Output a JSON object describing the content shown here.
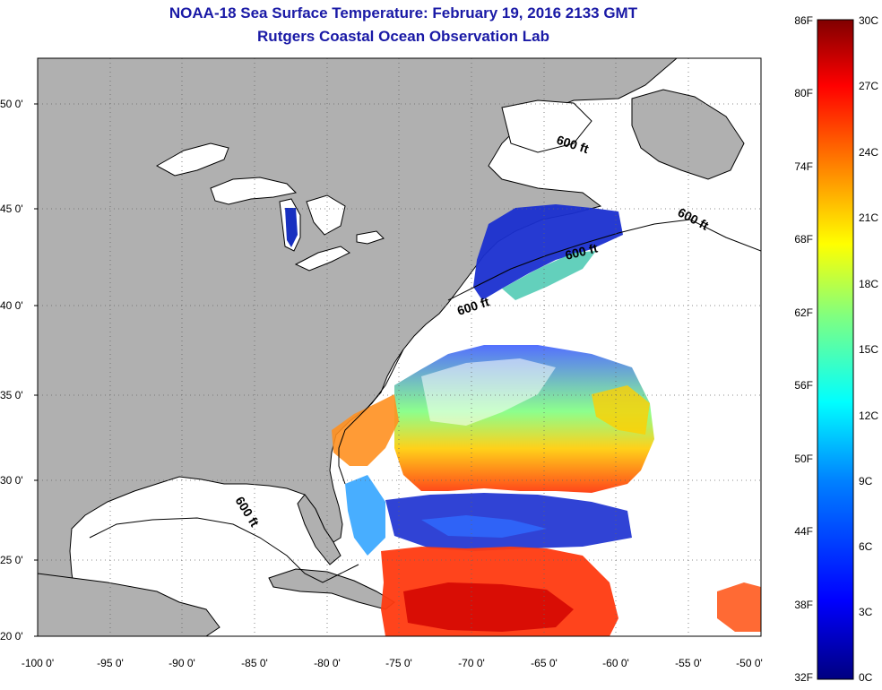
{
  "header": {
    "title": "NOAA-18 Sea Surface Temperature:  February 19, 2016 2133 GMT",
    "subtitle": "Rutgers Coastal Ocean Observation Lab"
  },
  "map": {
    "lat_ticks": [
      "50 0'",
      "45 0'",
      "40 0'",
      "35 0'",
      "30 0'",
      "25 0'",
      "20 0'"
    ],
    "lon_ticks": [
      "-100 0'",
      "-95 0'",
      "-90 0'",
      "-85 0'",
      "-80 0'",
      "-75 0'",
      "-70 0'",
      "-65 0'",
      "-60 0'",
      "-55 0'",
      "-50 0'"
    ],
    "contour_label": "600 ft",
    "colors": {
      "land": "#b0b0b0",
      "water_no_data": "#ffffff",
      "coast": "#000000",
      "grid": "#666666"
    }
  },
  "colorbar": {
    "f_labels": [
      "86F",
      "80F",
      "74F",
      "68F",
      "62F",
      "56F",
      "50F",
      "44F",
      "38F",
      "32F"
    ],
    "c_labels": [
      "30C",
      "27C",
      "24C",
      "21C",
      "18C",
      "15C",
      "12C",
      "9C",
      "6C",
      "3C",
      "0C"
    ],
    "range_c": [
      0,
      30
    ],
    "colors": [
      "#000080",
      "#0000ff",
      "#0080ff",
      "#00ffff",
      "#80ff80",
      "#ffff00",
      "#ff8000",
      "#ff0000",
      "#800000"
    ]
  }
}
